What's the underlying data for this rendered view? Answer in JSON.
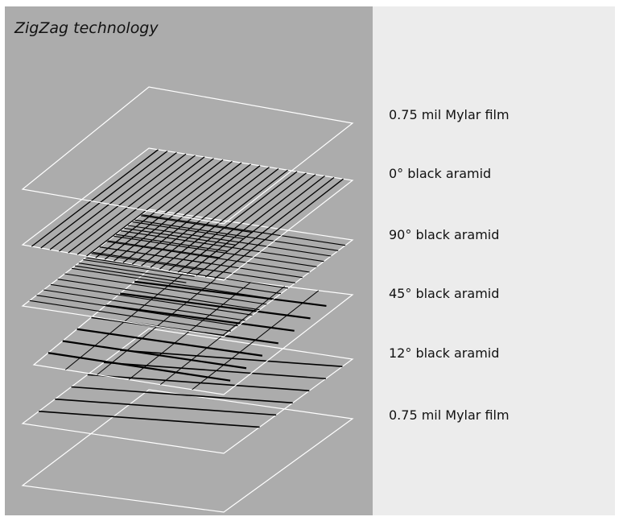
{
  "title": "ZigZag technology",
  "layers": [
    {
      "label": "0.75 mil Mylar film"
    },
    {
      "label": "0° black aramid"
    },
    {
      "label": "90° black aramid"
    },
    {
      "label": "45° black aramid"
    },
    {
      "label": "12° black aramid"
    },
    {
      "label": "0.75 mil Mylar film"
    }
  ],
  "colors": {
    "panel_bg": "#acacac",
    "figure_bg": "#ececec",
    "sheet_outline": "#ffffff",
    "fiber": "#000000"
  }
}
